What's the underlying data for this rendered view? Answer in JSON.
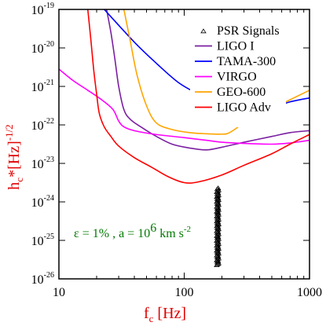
{
  "chart_data": {
    "type": "line",
    "x_scale": "log",
    "y_scale": "log",
    "xlim": [
      10,
      1000
    ],
    "ylim": [
      1e-26,
      1e-19
    ],
    "x_ticks": [
      {
        "value": 10,
        "label": "10"
      },
      {
        "value": 100,
        "label": "100"
      },
      {
        "value": 1000,
        "label": "1000"
      }
    ],
    "y_ticks": [
      {
        "exp": -19,
        "base": "10",
        "sup": "-19"
      },
      {
        "exp": -20,
        "base": "10",
        "sup": "-20"
      },
      {
        "exp": -21,
        "base": "10",
        "sup": "-21"
      },
      {
        "exp": -22,
        "base": "10",
        "sup": "-22"
      },
      {
        "exp": -23,
        "base": "10",
        "sup": "-23"
      },
      {
        "exp": -24,
        "base": "10",
        "sup": "-24"
      },
      {
        "exp": -25,
        "base": "10",
        "sup": "-25"
      },
      {
        "exp": -26,
        "base": "10",
        "sup": "-26"
      }
    ],
    "xlabel": {
      "main": "f",
      "sub": "c",
      "rest": " [Hz]"
    },
    "ylabel": {
      "main": "h",
      "sub": "c",
      "rest": "*[Hz]",
      "sup": "-1/2"
    },
    "legend": {
      "position": "top-right",
      "entries": [
        {
          "label": "PSR Signals",
          "marker": "triangle",
          "color": "#000000"
        },
        {
          "label": "LIGO I",
          "color": "#7b1fa2"
        },
        {
          "label": "TAMA-300",
          "color": "#0000ff"
        },
        {
          "label": "VIRGO",
          "color": "#ff00ff"
        },
        {
          "label": "GEO-600",
          "color": "#ffa500"
        },
        {
          "label": "LIGO Adv",
          "color": "#ff0000"
        }
      ]
    },
    "annotation": {
      "eps": "ε = 1% ,  a = 10",
      "sup1": "6",
      "mid": " km s",
      "sup2": "-2"
    },
    "series": [
      {
        "name": "LIGO I",
        "color": "#7b1fa2",
        "points": [
          [
            24,
            -19
          ],
          [
            26,
            -19.6
          ],
          [
            28,
            -20.3
          ],
          [
            30,
            -21.0
          ],
          [
            33,
            -21.6
          ],
          [
            37,
            -21.85
          ],
          [
            45,
            -22.05
          ],
          [
            60,
            -22.3
          ],
          [
            80,
            -22.5
          ],
          [
            110,
            -22.6
          ],
          [
            150,
            -22.65
          ],
          [
            200,
            -22.58
          ],
          [
            300,
            -22.45
          ],
          [
            500,
            -22.3
          ],
          [
            700,
            -22.2
          ],
          [
            1000,
            -22.15
          ]
        ]
      },
      {
        "name": "TAMA-300",
        "color": "#0000ff",
        "points": [
          [
            23,
            -19
          ],
          [
            40,
            -19.85
          ],
          [
            60,
            -20.4
          ],
          [
            90,
            -20.9
          ],
          [
            130,
            -21.2
          ],
          [
            200,
            -21.5
          ],
          [
            300,
            -21.6
          ],
          [
            500,
            -21.55
          ],
          [
            700,
            -21.4
          ],
          [
            1000,
            -21.3
          ]
        ]
      },
      {
        "name": "VIRGO",
        "color": "#ff00ff",
        "points": [
          [
            10,
            -20.55
          ],
          [
            13,
            -20.85
          ],
          [
            17,
            -21.1
          ],
          [
            22,
            -21.35
          ],
          [
            27,
            -21.6
          ],
          [
            30,
            -21.9
          ],
          [
            33,
            -22.05
          ],
          [
            40,
            -22.15
          ],
          [
            60,
            -22.25
          ],
          [
            100,
            -22.33
          ],
          [
            150,
            -22.4
          ],
          [
            200,
            -22.45
          ],
          [
            300,
            -22.48
          ],
          [
            500,
            -22.5
          ],
          [
            700,
            -22.47
          ],
          [
            1000,
            -22.4
          ]
        ]
      },
      {
        "name": "GEO-600",
        "color": "#ffa500",
        "points": [
          [
            33,
            -19
          ],
          [
            37,
            -19.8
          ],
          [
            42,
            -20.7
          ],
          [
            50,
            -21.5
          ],
          [
            60,
            -21.95
          ],
          [
            80,
            -22.12
          ],
          [
            110,
            -22.2
          ],
          [
            150,
            -22.23
          ],
          [
            200,
            -22.24
          ],
          [
            230,
            -22.2
          ],
          [
            300,
            -21.95
          ],
          [
            400,
            -21.7
          ],
          [
            600,
            -21.45
          ],
          [
            1000,
            -21.1
          ]
        ]
      },
      {
        "name": "LIGO Adv",
        "color": "#ff0000",
        "points": [
          [
            17,
            -19
          ],
          [
            18,
            -19.8
          ],
          [
            19,
            -20.6
          ],
          [
            20,
            -21.2
          ],
          [
            21,
            -21.7
          ],
          [
            23,
            -22.05
          ],
          [
            26,
            -22.3
          ],
          [
            30,
            -22.55
          ],
          [
            40,
            -22.85
          ],
          [
            55,
            -23.1
          ],
          [
            75,
            -23.35
          ],
          [
            100,
            -23.5
          ],
          [
            130,
            -23.48
          ],
          [
            200,
            -23.3
          ],
          [
            300,
            -23.05
          ],
          [
            500,
            -22.75
          ],
          [
            700,
            -22.5
          ],
          [
            1000,
            -22.25
          ]
        ]
      }
    ],
    "psr_signals": {
      "x": 185,
      "y_min_exp": -25.65,
      "y_max_exp": -23.65,
      "count": 80,
      "color": "#000000"
    }
  }
}
